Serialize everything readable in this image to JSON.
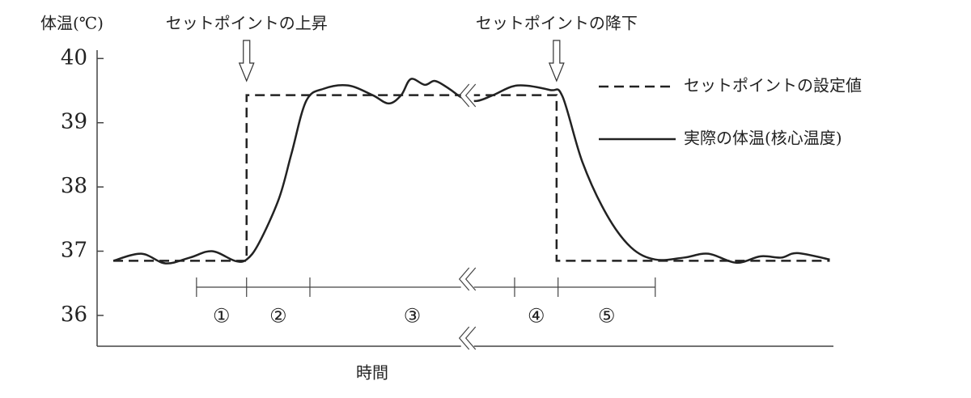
{
  "chart_data": {
    "type": "line",
    "y_label": "体温(℃)",
    "x_label": "時間",
    "ylim": [
      35.52,
      40.13
    ],
    "yticks": [
      36,
      37,
      38,
      39,
      40
    ],
    "xlim": [
      0,
      100
    ],
    "axis_break_x": 50.3,
    "series": [
      {
        "name": "セットポイントの設定値",
        "color": "#222222",
        "dashed": true,
        "x": [
          2.2,
          20.3,
          20.3,
          62.4,
          62.4,
          99.5
        ],
        "values": [
          36.85,
          36.85,
          39.43,
          39.43,
          36.85,
          36.85
        ]
      },
      {
        "name": "実際の体温(核心温度)",
        "color": "#222222",
        "dashed": false,
        "x": [
          2.2,
          6.0,
          9.3,
          12.6,
          15.6,
          18.7,
          20.3,
          22.0,
          24.7,
          26.4,
          28.4,
          30.8,
          34.1,
          37.4,
          39.6,
          41.3,
          42.6,
          44.5,
          45.9,
          47.8,
          49.7,
          51.6,
          53.8,
          57.1,
          61.5,
          63.2,
          65.9,
          69.2,
          72.5,
          75.8,
          79.7,
          83.0,
          86.8,
          90.1,
          92.9,
          95.1,
          99.5
        ],
        "values": [
          36.85,
          36.96,
          36.81,
          36.9,
          37.0,
          36.85,
          36.87,
          37.13,
          37.82,
          38.52,
          39.34,
          39.53,
          39.58,
          39.43,
          39.3,
          39.43,
          39.68,
          39.59,
          39.65,
          39.53,
          39.38,
          39.34,
          39.43,
          39.58,
          39.51,
          39.41,
          38.39,
          37.57,
          37.06,
          36.87,
          36.9,
          36.96,
          36.82,
          36.92,
          36.9,
          36.97,
          36.87
        ]
      }
    ],
    "annotations": [
      {
        "text": "セットポイントの上昇",
        "x": 20.3
      },
      {
        "text": "セットポイントの降下",
        "x": 62.4
      }
    ],
    "phase_bounds": [
      13.5,
      20.3,
      28.9,
      56.7,
      62.6,
      75.8
    ],
    "phase_labels": [
      "①",
      "②",
      "③",
      "④",
      "⑤"
    ]
  }
}
